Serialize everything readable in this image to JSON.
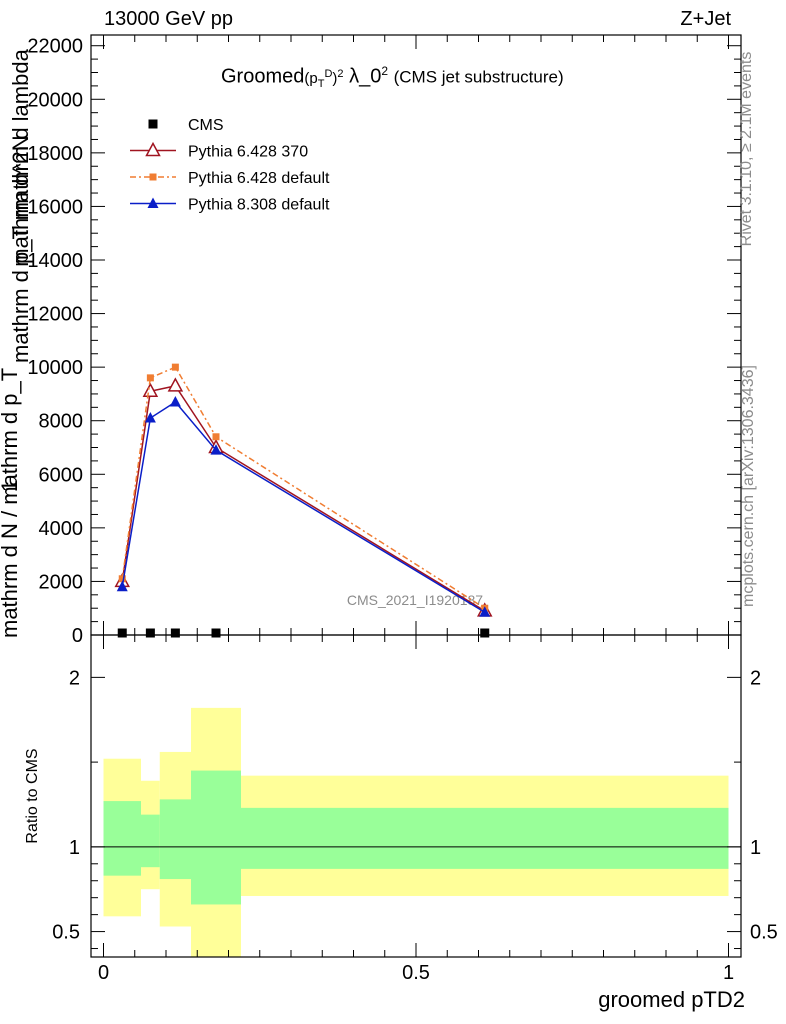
{
  "header": {
    "energy": "13000 GeV pp",
    "process": "Z+Jet"
  },
  "side_labels": {
    "rivet": "Rivet 3.1.10, ≥ 2.1M events",
    "mcplots": "mcplots.cern.ch [arXiv:1306.3436]"
  },
  "chart_data": [
    {
      "type": "line",
      "title_main": "Groomed",
      "title_rest": "λ_0",
      "title_note": "(CMS jet substructure)",
      "analysis_label": "CMS_2021_I1920187",
      "ylabel_parts": [
        "1",
        "mathrm d N / mathrm d p_T",
        "mathrm d^2N",
        "mathrm d p_T mathrm d lambda"
      ],
      "ylim": [
        0,
        22400
      ],
      "xlim": [
        -0.02,
        1.02
      ],
      "yticks": [
        0,
        2000,
        4000,
        6000,
        8000,
        10000,
        12000,
        14000,
        16000,
        18000,
        20000,
        22000
      ],
      "yticklabels": [
        "0",
        "2000",
        "4000",
        "6000",
        "8000",
        "10000",
        "12000",
        "14000",
        "16000",
        "18000",
        "20000",
        "22000"
      ],
      "x": [
        0.03,
        0.075,
        0.115,
        0.18,
        0.61
      ],
      "legend_position": "top-left",
      "series": [
        {
          "name": "CMS",
          "color": "#000000",
          "marker": "square",
          "dash": "",
          "values": [
            0,
            0,
            0,
            0,
            0
          ]
        },
        {
          "name": "Pythia 6.428 370",
          "color": "#a01420",
          "marker": "triangle-open",
          "dash": "",
          "values": [
            2000,
            9100,
            9300,
            7000,
            900
          ]
        },
        {
          "name": "Pythia 6.428 default",
          "color": "#f07d32",
          "marker": "square-small",
          "dash": "6,3,2,3",
          "values": [
            2100,
            9600,
            10000,
            7400,
            1000
          ]
        },
        {
          "name": "Pythia 8.308 default",
          "color": "#0a1ec8",
          "marker": "triangle-filled",
          "dash": "",
          "values": [
            1800,
            8100,
            8700,
            6900,
            850
          ]
        }
      ]
    },
    {
      "type": "area",
      "ylabel": "Ratio to CMS",
      "xlabel": "groomed pTD2",
      "ylim": [
        0.35,
        2.25
      ],
      "xlim": [
        -0.02,
        1.02
      ],
      "yticks": [
        0.5,
        1,
        2
      ],
      "yticklabels": [
        "0.5",
        "1",
        "2"
      ],
      "xticks": [
        0,
        0.5,
        1
      ],
      "xticklabels": [
        "0",
        "0.5",
        "1"
      ],
      "bins": [
        0.0,
        0.06,
        0.09,
        0.14,
        0.22,
        1.0
      ],
      "inner_band": [
        [
          0.83,
          1.27
        ],
        [
          0.88,
          1.19
        ],
        [
          0.81,
          1.28
        ],
        [
          0.66,
          1.45
        ],
        [
          0.87,
          1.23
        ]
      ],
      "outer_band": [
        [
          0.59,
          1.52
        ],
        [
          0.75,
          1.39
        ],
        [
          0.53,
          1.56
        ],
        [
          0.3,
          1.82
        ],
        [
          0.71,
          1.42
        ]
      ],
      "inner_color": "#99ff99",
      "outer_color": "#ffff99",
      "reference": 1
    }
  ]
}
